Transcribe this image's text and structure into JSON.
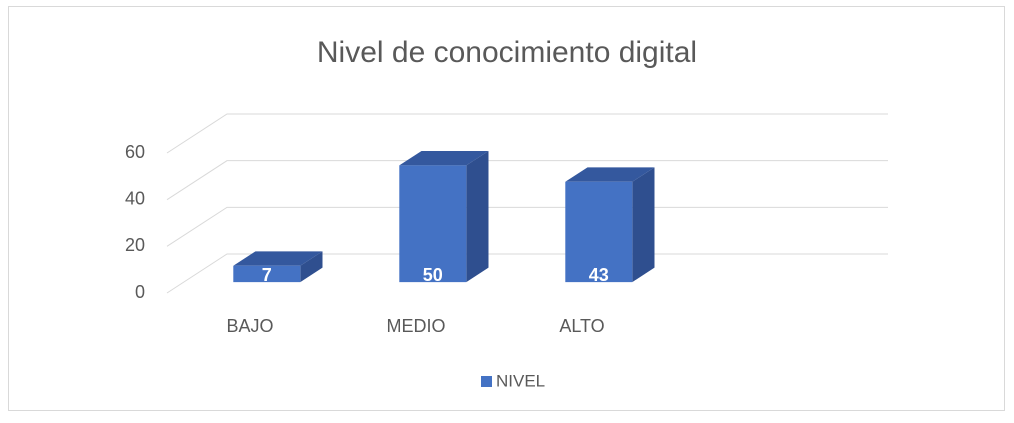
{
  "chart_data": {
    "type": "bar3d",
    "title": "Nivel de conocimiento digital",
    "categories": [
      "BAJO",
      "MEDIO",
      "ALTO"
    ],
    "series": [
      {
        "name": "NIVEL",
        "color": "#4472c4",
        "values": [
          7,
          50,
          43
        ]
      }
    ],
    "ylim": [
      0,
      60
    ],
    "yticks": [
      0,
      20,
      40,
      60
    ],
    "grid": true,
    "legend": "bottom"
  }
}
